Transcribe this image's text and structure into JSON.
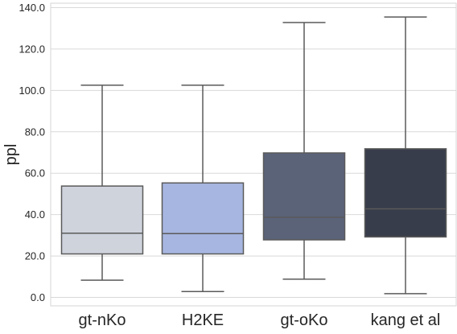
{
  "chart_data": {
    "type": "box",
    "title": "",
    "xlabel": "",
    "ylabel": "ppl",
    "ylim": [
      -4,
      142
    ],
    "yticks": [
      0,
      20,
      40,
      60,
      80,
      100,
      120,
      140
    ],
    "ytick_labels": [
      "0.0",
      "20.0",
      "40.0",
      "60.0",
      "80.0",
      "100.0",
      "120.0",
      "140.0"
    ],
    "grid": "horizontal",
    "categories": [
      "gt-nKo",
      "H2KE",
      "gt-oKo",
      "kang et al"
    ],
    "series": [
      {
        "whisker_low": 8.3,
        "q1": 21.0,
        "median": 31.0,
        "q3": 53.8,
        "whisker_high": 102.5,
        "color": "#ced3dc"
      },
      {
        "whisker_low": 2.8,
        "q1": 21.0,
        "median": 30.8,
        "q3": 55.3,
        "whisker_high": 102.5,
        "color": "#a7b6e0"
      },
      {
        "whisker_low": 8.8,
        "q1": 27.8,
        "median": 38.7,
        "q3": 69.8,
        "whisker_high": 132.8,
        "color": "#5b6379"
      },
      {
        "whisker_low": 1.8,
        "q1": 29.2,
        "median": 42.8,
        "q3": 71.8,
        "whisker_high": 135.5,
        "color": "#383d4b"
      }
    ]
  },
  "colors": {
    "grid": "#d9d9d9",
    "frame": "#d5d5d5",
    "edge": "#5a5a5a",
    "text": "#262626"
  }
}
